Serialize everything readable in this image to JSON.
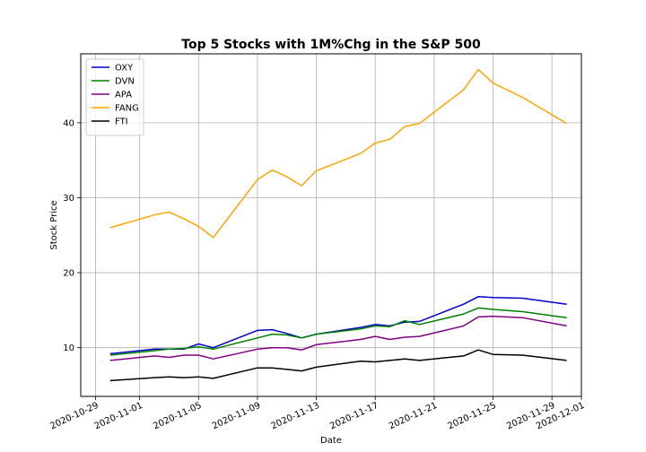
{
  "chart_data": {
    "type": "line",
    "title": "Top 5 Stocks with 1M%Chg in the S&P 500",
    "xlabel": "Date",
    "ylabel": "Stock Price",
    "xlim": [
      "2020-10-28",
      "2020-12-01"
    ],
    "ylim": [
      3.5,
      49.2
    ],
    "x_ticks": [
      "2020-10-29",
      "2020-11-01",
      "2020-11-05",
      "2020-11-09",
      "2020-11-13",
      "2020-11-17",
      "2020-11-21",
      "2020-11-25",
      "2020-11-29",
      "2020-12-01"
    ],
    "y_ticks": [
      10,
      20,
      30,
      40
    ],
    "grid": true,
    "legend_position": "top-left",
    "x": [
      "2020-10-30",
      "2020-11-02",
      "2020-11-03",
      "2020-11-04",
      "2020-11-05",
      "2020-11-06",
      "2020-11-09",
      "2020-11-10",
      "2020-11-11",
      "2020-11-12",
      "2020-11-13",
      "2020-11-16",
      "2020-11-17",
      "2020-11-18",
      "2020-11-19",
      "2020-11-20",
      "2020-11-23",
      "2020-11-24",
      "2020-11-25",
      "2020-11-27",
      "2020-11-30"
    ],
    "series": [
      {
        "name": "OXY",
        "color": "#0000cc",
        "values": [
          9.2,
          9.8,
          9.8,
          9.8,
          10.5,
          10.0,
          12.3,
          12.4,
          11.9,
          11.3,
          11.8,
          12.7,
          13.1,
          12.9,
          13.4,
          13.5,
          15.8,
          16.8,
          16.7,
          16.6,
          15.8
        ]
      },
      {
        "name": "DVN",
        "color": "#008000",
        "values": [
          9.0,
          9.6,
          9.8,
          9.9,
          10.1,
          9.8,
          11.3,
          11.8,
          11.7,
          11.3,
          11.8,
          12.5,
          12.9,
          12.8,
          13.6,
          13.1,
          14.5,
          15.3,
          15.1,
          14.8,
          14.0
        ]
      },
      {
        "name": "APA",
        "color": "#800080",
        "values": [
          8.3,
          8.9,
          8.7,
          9.0,
          9.0,
          8.5,
          9.8,
          10.0,
          10.0,
          9.7,
          10.4,
          11.1,
          11.5,
          11.1,
          11.4,
          11.5,
          12.9,
          14.1,
          14.2,
          14.0,
          12.9
        ]
      },
      {
        "name": "FANG",
        "color": "#ffa500",
        "values": [
          26.0,
          27.7,
          28.1,
          27.2,
          26.2,
          24.7,
          32.4,
          33.7,
          32.8,
          31.6,
          33.6,
          35.9,
          37.3,
          37.8,
          39.5,
          39.9,
          44.4,
          47.1,
          45.3,
          43.4,
          39.9
        ]
      },
      {
        "name": "FTI",
        "color": "#000000",
        "values": [
          5.6,
          6.0,
          6.1,
          6.0,
          6.1,
          5.9,
          7.3,
          7.3,
          7.1,
          6.9,
          7.4,
          8.2,
          8.1,
          8.3,
          8.5,
          8.3,
          8.9,
          9.7,
          9.1,
          9.0,
          8.3
        ]
      }
    ]
  }
}
